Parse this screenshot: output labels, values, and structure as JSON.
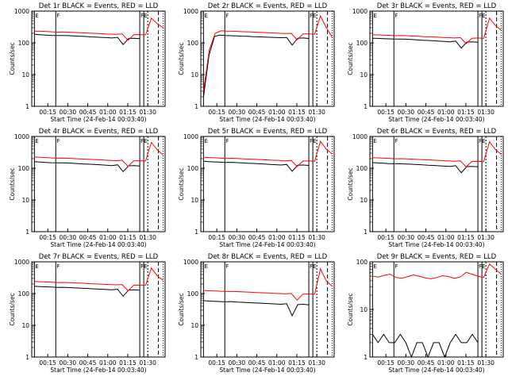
{
  "figure": {
    "ylabel": "Counts/sec",
    "xlabel": "Start Time (24-Feb-14 00:03:40)",
    "colors": {
      "events": "#000000",
      "lld": "#ff0000",
      "background": "#ffffff"
    }
  },
  "chart_data": [
    {
      "type": "line",
      "title": "Det 1r BLACK = Events, RED = LLD",
      "ylim": [
        1,
        1000
      ],
      "yscale": "log",
      "x_ticks": [
        "00:15",
        "00:30",
        "00:45",
        "01:00",
        "01:15",
        "01:30"
      ],
      "y_ticks": [
        "1",
        "10",
        "100",
        "1000"
      ],
      "xlabel": "Start Time (24-Feb-14 00:03:40)",
      "ylabel": "Counts/sec",
      "series": [
        {
          "name": "Events",
          "color": "#000000",
          "values": [
            185,
            180,
            176,
            172,
            170,
            171,
            169,
            165,
            162,
            159,
            155,
            152,
            149,
            146,
            142,
            150,
            88,
            138,
            140,
            135
          ]
        },
        {
          "name": "LLD",
          "color": "#ff0000",
          "values": [
            235,
            232,
            228,
            222,
            218,
            220,
            216,
            212,
            208,
            203,
            200,
            196,
            192,
            188,
            185,
            190,
            120,
            180,
            182,
            178,
            600,
            400,
            300
          ]
        }
      ],
      "markers": [
        "E",
        "F",
        "FE"
      ]
    },
    {
      "type": "line",
      "title": "Det 2r BLACK = Events, RED = LLD",
      "ylim": [
        1,
        1000
      ],
      "yscale": "log",
      "x_ticks": [
        "00:15",
        "00:30",
        "00:45",
        "01:00",
        "01:15",
        "01:30"
      ],
      "y_ticks": [
        "1",
        "10",
        "100",
        "1000"
      ],
      "xlabel": "Start Time (24-Feb-14 00:03:40)",
      "ylabel": "Counts/sec",
      "series": [
        {
          "name": "Events",
          "color": "#000000",
          "values": [
            2,
            40,
            160,
            175,
            170,
            168,
            166,
            162,
            160,
            157,
            155,
            152,
            150,
            147,
            145,
            148,
            85,
            140,
            142,
            137
          ]
        },
        {
          "name": "LLD",
          "color": "#ff0000",
          "values": [
            3,
            60,
            200,
            240,
            235,
            232,
            228,
            224,
            220,
            216,
            212,
            208,
            204,
            200,
            197,
            200,
            125,
            190,
            192,
            188,
            700,
            300,
            150
          ]
        }
      ],
      "markers": [
        "E",
        "F",
        "FE"
      ]
    },
    {
      "type": "line",
      "title": "Det 3r BLACK = Events, RED = LLD",
      "ylim": [
        1,
        1000
      ],
      "yscale": "log",
      "x_ticks": [
        "00:15",
        "00:30",
        "00:45",
        "01:00",
        "01:15",
        "01:30"
      ],
      "y_ticks": [
        "1",
        "10",
        "100",
        "1000"
      ],
      "xlabel": "Start Time (24-Feb-14 00:03:40)",
      "ylabel": "Counts/sec",
      "series": [
        {
          "name": "Events",
          "color": "#000000",
          "values": [
            140,
            138,
            136,
            133,
            131,
            132,
            130,
            127,
            124,
            121,
            119,
            116,
            113,
            111,
            108,
            114,
            68,
            106,
            108,
            104
          ]
        },
        {
          "name": "LLD",
          "color": "#ff0000",
          "values": [
            180,
            178,
            176,
            172,
            168,
            170,
            167,
            163,
            160,
            157,
            154,
            151,
            148,
            145,
            142,
            146,
            95,
            140,
            142,
            138,
            600,
            350,
            250
          ]
        }
      ],
      "markers": [
        "E",
        "F",
        "FE"
      ]
    },
    {
      "type": "line",
      "title": "Det 4r BLACK = Events, RED = LLD",
      "ylim": [
        1,
        1000
      ],
      "yscale": "log",
      "x_ticks": [
        "00:15",
        "00:30",
        "00:45",
        "01:00",
        "01:15",
        "01:30"
      ],
      "y_ticks": [
        "1",
        "10",
        "100",
        "1000"
      ],
      "xlabel": "Start Time (24-Feb-14 00:03:40)",
      "ylabel": "Counts/sec",
      "series": [
        {
          "name": "Events",
          "color": "#000000",
          "values": [
            160,
            156,
            152,
            149,
            147,
            148,
            146,
            142,
            139,
            136,
            133,
            130,
            127,
            124,
            121,
            128,
            78,
            119,
            121,
            117
          ]
        },
        {
          "name": "LLD",
          "color": "#ff0000",
          "values": [
            225,
            220,
            216,
            210,
            206,
            208,
            204,
            200,
            196,
            192,
            188,
            184,
            180,
            176,
            173,
            178,
            115,
            170,
            172,
            168,
            650,
            380,
            260
          ]
        }
      ],
      "markers": [
        "E",
        "F",
        "FE"
      ]
    },
    {
      "type": "line",
      "title": "Det 5r BLACK = Events, RED = LLD",
      "ylim": [
        1,
        1000
      ],
      "yscale": "log",
      "x_ticks": [
        "00:15",
        "00:30",
        "00:45",
        "01:00",
        "01:15",
        "01:30"
      ],
      "y_ticks": [
        "1",
        "10",
        "100",
        "1000"
      ],
      "xlabel": "Start Time (24-Feb-14 00:03:40)",
      "ylabel": "Counts/sec",
      "series": [
        {
          "name": "Events",
          "color": "#000000",
          "values": [
            165,
            161,
            158,
            155,
            152,
            153,
            150,
            147,
            144,
            141,
            138,
            135,
            132,
            129,
            126,
            132,
            80,
            124,
            126,
            122
          ]
        },
        {
          "name": "LLD",
          "color": "#ff0000",
          "values": [
            220,
            216,
            212,
            207,
            203,
            205,
            201,
            197,
            193,
            189,
            186,
            182,
            178,
            175,
            171,
            176,
            112,
            168,
            170,
            166,
            700,
            400,
            280
          ]
        }
      ],
      "markers": [
        "E",
        "F",
        "FE"
      ]
    },
    {
      "type": "line",
      "title": "Det 6r BLACK = Events, RED = LLD",
      "ylim": [
        1,
        1000
      ],
      "yscale": "log",
      "x_ticks": [
        "00:15",
        "00:30",
        "00:45",
        "01:00",
        "01:15",
        "01:30"
      ],
      "y_ticks": [
        "1",
        "10",
        "100",
        "1000"
      ],
      "xlabel": "Start Time (24-Feb-14 00:03:40)",
      "ylabel": "Counts/sec",
      "series": [
        {
          "name": "Events",
          "color": "#000000",
          "values": [
            150,
            146,
            143,
            140,
            138,
            139,
            136,
            133,
            130,
            127,
            124,
            122,
            119,
            116,
            114,
            120,
            72,
            112,
            114,
            110
          ]
        },
        {
          "name": "LLD",
          "color": "#ff0000",
          "values": [
            215,
            211,
            207,
            202,
            198,
            200,
            196,
            192,
            188,
            184,
            181,
            177,
            173,
            170,
            166,
            171,
            110,
            163,
            165,
            161,
            680,
            390,
            270
          ]
        }
      ],
      "markers": [
        "E",
        "F",
        "FE"
      ]
    },
    {
      "type": "line",
      "title": "Det 7r BLACK = Events, RED = LLD",
      "ylim": [
        1,
        1000
      ],
      "yscale": "log",
      "x_ticks": [
        "00:15",
        "00:30",
        "00:45",
        "01:00",
        "01:15",
        "01:30"
      ],
      "y_ticks": [
        "1",
        "10",
        "100",
        "1000"
      ],
      "xlabel": "Start Time (24-Feb-14 00:03:40)",
      "ylabel": "Counts/sec",
      "series": [
        {
          "name": "Events",
          "color": "#000000",
          "values": [
            170,
            166,
            163,
            160,
            157,
            158,
            155,
            152,
            149,
            146,
            143,
            140,
            137,
            134,
            131,
            137,
            82,
            129,
            131,
            127
          ]
        },
        {
          "name": "LLD",
          "color": "#ff0000",
          "values": [
            240,
            236,
            232,
            226,
            222,
            224,
            220,
            216,
            212,
            207,
            203,
            199,
            195,
            191,
            188,
            193,
            122,
            184,
            186,
            182,
            640,
            360,
            260
          ]
        }
      ],
      "markers": [
        "E",
        "F",
        "FE"
      ]
    },
    {
      "type": "line",
      "title": "Det 8r BLACK = Events, RED = LLD",
      "ylim": [
        1,
        1000
      ],
      "yscale": "log",
      "x_ticks": [
        "00:15",
        "00:30",
        "00:45",
        "01:00",
        "01:15",
        "01:30"
      ],
      "y_ticks": [
        "1",
        "10",
        "100",
        "1000"
      ],
      "xlabel": "Start Time (24-Feb-14 00:03:40)",
      "ylabel": "Counts/sec",
      "series": [
        {
          "name": "Events",
          "color": "#000000",
          "values": [
            60,
            58,
            57,
            56,
            55,
            56,
            54,
            53,
            52,
            51,
            50,
            49,
            48,
            47,
            46,
            48,
            20,
            45,
            46,
            44
          ]
        },
        {
          "name": "LLD",
          "color": "#ff0000",
          "values": [
            125,
            122,
            120,
            118,
            116,
            117,
            115,
            112,
            110,
            108,
            106,
            104,
            102,
            100,
            98,
            101,
            62,
            96,
            97,
            95,
            600,
            250,
            170
          ]
        }
      ],
      "markers": [
        "E",
        "F",
        "FE"
      ]
    },
    {
      "type": "line",
      "title": "Det 9r BLACK = Events, RED = LLD",
      "ylim": [
        1,
        100
      ],
      "yscale": "log",
      "x_ticks": [
        "00:15",
        "00:30",
        "00:45",
        "01:00",
        "01:15",
        "01:30"
      ],
      "y_ticks": [
        "1",
        "10",
        "100"
      ],
      "xlabel": "Start Time (24-Feb-14 00:03:40)",
      "ylabel": "Counts/sec",
      "series": [
        {
          "name": "Events",
          "color": "#000000",
          "values": [
            3,
            2,
            3,
            2,
            2,
            3,
            2,
            1,
            2,
            2,
            1,
            2,
            2,
            1,
            2,
            3,
            2,
            2,
            3,
            2
          ]
        },
        {
          "name": "LLD",
          "color": "#ff0000",
          "values": [
            50,
            48,
            52,
            55,
            47,
            45,
            49,
            53,
            50,
            46,
            44,
            47,
            51,
            49,
            45,
            48,
            60,
            55,
            50,
            47,
            90,
            70,
            55
          ]
        }
      ],
      "markers": [
        "E",
        "F",
        "FE"
      ]
    }
  ]
}
